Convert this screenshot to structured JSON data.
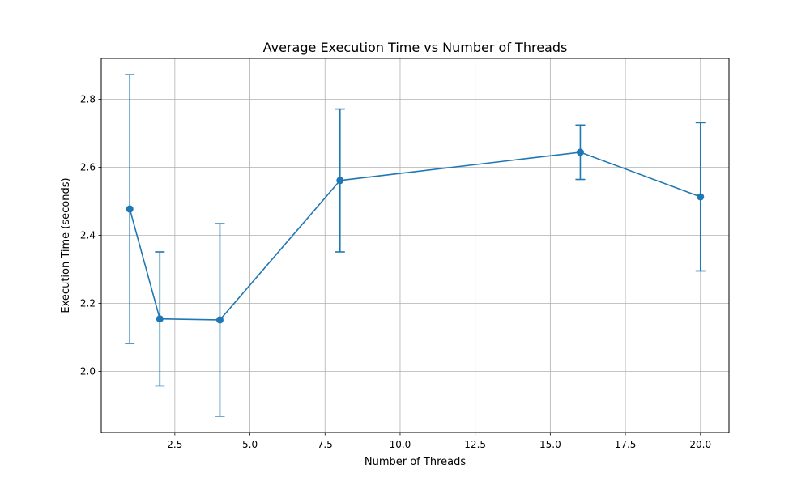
{
  "chart_data": {
    "type": "line",
    "title": "Average Execution Time vs Number of Threads",
    "xlabel": "Number of Threads",
    "ylabel": "Execution Time (seconds)",
    "xlim": [
      0.05,
      20.95
    ],
    "ylim": [
      1.82,
      2.92
    ],
    "xticks": [
      2.5,
      5.0,
      7.5,
      10.0,
      12.5,
      15.0,
      17.5,
      20.0
    ],
    "xtick_labels": [
      "2.5",
      "5.0",
      "7.5",
      "10.0",
      "12.5",
      "15.0",
      "17.5",
      "20.0"
    ],
    "yticks": [
      2.0,
      2.2,
      2.4,
      2.6,
      2.8
    ],
    "ytick_labels": [
      "2.0",
      "2.2",
      "2.4",
      "2.6",
      "2.8"
    ],
    "grid": true,
    "series": [
      {
        "color": "#1f77b4",
        "x": [
          1,
          2,
          4,
          8,
          16,
          20
        ],
        "y": [
          2.477,
          2.154,
          2.151,
          2.561,
          2.644,
          2.513
        ],
        "err": [
          0.395,
          0.197,
          0.283,
          0.21,
          0.08,
          0.218
        ]
      }
    ]
  }
}
